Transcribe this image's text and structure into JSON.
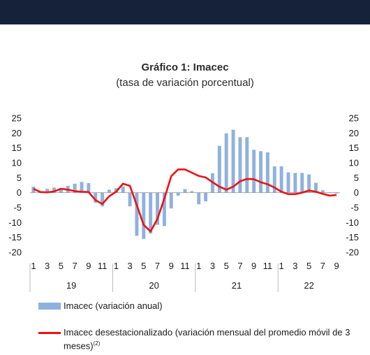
{
  "header": {
    "title": "Gráfico 1: Imacec",
    "subtitle": "(tasa de variación porcentual)"
  },
  "legend": {
    "bars_label": "Imacec (variación anual)",
    "line_label": "Imacec desestacionalizado (variación mensual del promedio móvil de 3 meses)",
    "line_note": "(2)"
  },
  "colors": {
    "bars": "#8fb1de",
    "line": "#ee1111",
    "topbar": "#16213a"
  },
  "chart_data": {
    "type": "bar",
    "ylim": [
      -20,
      25
    ],
    "yticks": [
      25,
      20,
      15,
      10,
      5,
      0,
      -5,
      -10,
      -15,
      -20
    ],
    "grid": false,
    "month_tick_labels": [
      "1",
      "3",
      "5",
      "7",
      "9",
      "11"
    ],
    "years": [
      "19",
      "20",
      "21",
      "22"
    ],
    "series": [
      {
        "name": "Imacec (variación anual)",
        "type": "bar",
        "values": [
          2.0,
          0.3,
          1.3,
          1.7,
          1.0,
          2.3,
          3.0,
          3.6,
          3.2,
          -3.4,
          -4.6,
          1.0,
          1.5,
          2.0,
          -4.6,
          -14.5,
          -15.5,
          -13.7,
          -10.8,
          -11.2,
          -5.3,
          -1.0,
          1.2,
          0.5,
          -3.9,
          -2.9,
          6.5,
          15.7,
          19.9,
          21.1,
          18.6,
          18.6,
          14.4,
          13.9,
          13.5,
          8.8,
          8.8,
          6.8,
          6.6,
          6.6,
          6.1,
          3.3,
          0.8,
          0.1,
          -0.3
        ]
      },
      {
        "name": "Imacec desestacionalizado (variación mensual del promedio móvil de 3 meses)",
        "type": "line",
        "values": [
          1.3,
          0.2,
          0.1,
          0.4,
          1.3,
          1.0,
          0.5,
          0.3,
          0.2,
          -2.5,
          -3.8,
          -1.2,
          0.3,
          3.0,
          2.3,
          -4.2,
          -10.8,
          -13.0,
          -8.8,
          -2.0,
          5.5,
          7.8,
          7.8,
          6.7,
          5.6,
          5.1,
          3.5,
          2.0,
          1.0,
          2.0,
          3.8,
          4.6,
          4.5,
          3.5,
          2.8,
          1.7,
          0.3,
          -0.5,
          -0.5,
          0.0,
          0.7,
          0.3,
          -0.4,
          -1.0,
          -0.8
        ]
      }
    ]
  }
}
